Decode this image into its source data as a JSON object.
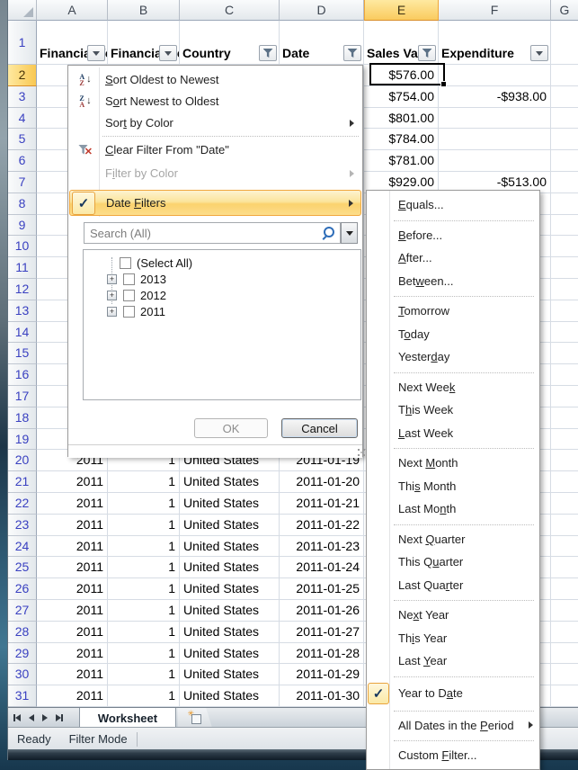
{
  "colors": {
    "accent_orange": "#F0A73E",
    "selected_header_fill": "#FACB5F",
    "row_number_blue": "#3A41C1",
    "gridline": "#D6DCE4",
    "menu_check_navy": "#17375E"
  },
  "grid": {
    "columns": [
      {
        "letter": "A",
        "header": "Financial Year",
        "filter_button": "dropdown",
        "two_line": true
      },
      {
        "letter": "B",
        "header": "Financial Period",
        "filter_button": "dropdown",
        "two_line": true
      },
      {
        "letter": "C",
        "header": "Country",
        "filter_button": "funnel",
        "two_line": false
      },
      {
        "letter": "D",
        "header": "Date",
        "filter_button": "funnel",
        "two_line": false
      },
      {
        "letter": "E",
        "header": "Sales Value",
        "filter_button": "funnel",
        "two_line": true,
        "selected": true
      },
      {
        "letter": "F",
        "header": "Expenditure",
        "filter_button": "dropdown",
        "two_line": false
      },
      {
        "letter": "G",
        "header": "",
        "filter_button": "",
        "two_line": false
      }
    ],
    "first_row": 1,
    "last_row": 31,
    "selected_row": 2,
    "selected_cell_value": "$576.00",
    "rows": {
      "2": {
        "e": "$576.00"
      },
      "3": {
        "e": "$754.00",
        "f": "-$938.00"
      },
      "4": {
        "e": "$801.00"
      },
      "5": {
        "e": "$784.00"
      },
      "6": {
        "e": "$781.00"
      },
      "7": {
        "e": "$929.00",
        "f": "-$513.00"
      },
      "20": {
        "a": "2011",
        "b": "1",
        "c": "United States",
        "d": "2011-01-19"
      },
      "21": {
        "a": "2011",
        "b": "1",
        "c": "United States",
        "d": "2011-01-20"
      },
      "22": {
        "a": "2011",
        "b": "1",
        "c": "United States",
        "d": "2011-01-21"
      },
      "23": {
        "a": "2011",
        "b": "1",
        "c": "United States",
        "d": "2011-01-22"
      },
      "24": {
        "a": "2011",
        "b": "1",
        "c": "United States",
        "d": "2011-01-23"
      },
      "25": {
        "a": "2011",
        "b": "1",
        "c": "United States",
        "d": "2011-01-24"
      },
      "26": {
        "a": "2011",
        "b": "1",
        "c": "United States",
        "d": "2011-01-25"
      },
      "27": {
        "a": "2011",
        "b": "1",
        "c": "United States",
        "d": "2011-01-26"
      },
      "28": {
        "a": "2011",
        "b": "1",
        "c": "United States",
        "d": "2011-01-27"
      },
      "29": {
        "a": "2011",
        "b": "1",
        "c": "United States",
        "d": "2011-01-28"
      },
      "30": {
        "a": "2011",
        "b": "1",
        "c": "United States",
        "d": "2011-01-29"
      },
      "31": {
        "a": "2011",
        "b": "1",
        "c": "United States",
        "d": "2011-01-30"
      }
    }
  },
  "filter_menu": {
    "items": [
      {
        "type": "item",
        "label": "Sort Oldest to Newest",
        "u": 0,
        "icon": "sort-az-icon"
      },
      {
        "type": "item",
        "label": "Sort Newest to Oldest",
        "u": 1,
        "icon": "sort-za-icon"
      },
      {
        "type": "item",
        "label": "Sort by Color",
        "u": 3,
        "submenu": true
      },
      {
        "type": "separator"
      },
      {
        "type": "item",
        "label": "Clear Filter From \"Date\"",
        "u": 0,
        "icon": "clear-filter-icon"
      },
      {
        "type": "item",
        "label": "Filter by Color",
        "u": 1,
        "submenu": true,
        "disabled": true
      },
      {
        "type": "item",
        "label": "Date Filters",
        "u": 5,
        "submenu": true,
        "checked": true,
        "highlighted": true
      }
    ],
    "search_placeholder": "Search (All)",
    "tree": [
      {
        "label": "(Select All)",
        "expander": false,
        "checked": false
      },
      {
        "label": "2013",
        "expander": true,
        "checked": false
      },
      {
        "label": "2012",
        "expander": true,
        "checked": false
      },
      {
        "label": "2011",
        "expander": true,
        "checked": false
      }
    ],
    "buttons": {
      "ok": "OK",
      "cancel": "Cancel"
    }
  },
  "date_filters_submenu": {
    "items": [
      {
        "type": "item",
        "label": "Equals...",
        "u": 0
      },
      {
        "type": "separator"
      },
      {
        "type": "item",
        "label": "Before...",
        "u": 0
      },
      {
        "type": "item",
        "label": "After...",
        "u": 0
      },
      {
        "type": "item",
        "label": "Between...",
        "u": 3
      },
      {
        "type": "separator"
      },
      {
        "type": "item",
        "label": "Tomorrow",
        "u": 0
      },
      {
        "type": "item",
        "label": "Today",
        "u": 1
      },
      {
        "type": "item",
        "label": "Yesterday",
        "u": 6
      },
      {
        "type": "separator"
      },
      {
        "type": "item",
        "label": "Next Week",
        "u": 8
      },
      {
        "type": "item",
        "label": "This Week",
        "u": 1
      },
      {
        "type": "item",
        "label": "Last Week",
        "u": 0
      },
      {
        "type": "separator"
      },
      {
        "type": "item",
        "label": "Next Month",
        "u": 5
      },
      {
        "type": "item",
        "label": "This Month",
        "u": 3
      },
      {
        "type": "item",
        "label": "Last Month",
        "u": 7
      },
      {
        "type": "separator"
      },
      {
        "type": "item",
        "label": "Next Quarter",
        "u": 5
      },
      {
        "type": "item",
        "label": "This Quarter",
        "u": 6
      },
      {
        "type": "item",
        "label": "Last Quarter",
        "u": 8
      },
      {
        "type": "separator"
      },
      {
        "type": "item",
        "label": "Next Year",
        "u": 2
      },
      {
        "type": "item",
        "label": "This Year",
        "u": 2
      },
      {
        "type": "item",
        "label": "Last Year",
        "u": 5
      },
      {
        "type": "separator"
      },
      {
        "type": "item",
        "label": "Year to Date",
        "u": 9,
        "checked": true
      },
      {
        "type": "separator"
      },
      {
        "type": "item",
        "label": "All Dates in the Period",
        "u": 17,
        "submenu": true
      },
      {
        "type": "separator"
      },
      {
        "type": "item",
        "label": "Custom Filter...",
        "u": 7
      }
    ]
  },
  "sheet_tabs": {
    "active": "Worksheet"
  },
  "status_bar": {
    "ready": "Ready",
    "mode": "Filter Mode"
  }
}
